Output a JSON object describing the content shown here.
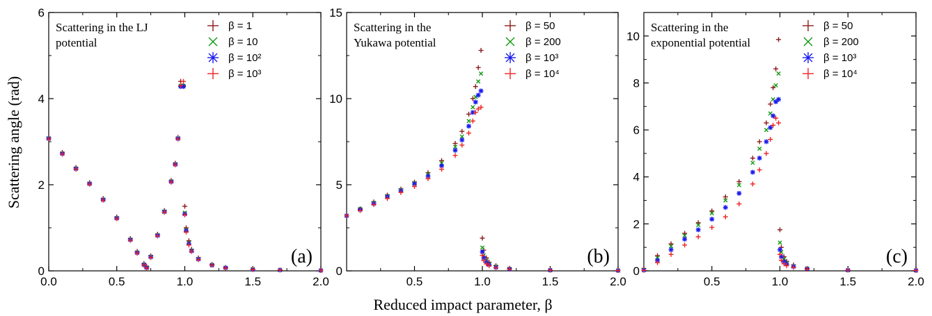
{
  "figure": {
    "ylabel": "Scattering angle (rad)",
    "xlabel": "Reduced impact parameter, β"
  },
  "chart_data": [
    {
      "type": "scatter",
      "title": "Scattering in the LJ potential",
      "title_lines": [
        "Scattering in the LJ",
        "potential"
      ],
      "panel_label": "(a)",
      "xlim": [
        0,
        2
      ],
      "ylim": [
        0,
        6
      ],
      "x_ticks": [
        "0.0",
        "0.5",
        "1.0",
        "1.5",
        "2.0"
      ],
      "y_ticks": [
        "0",
        "2",
        "4",
        "6"
      ],
      "legend": "top-right",
      "series": [
        {
          "name": "β = 1",
          "marker": "plus",
          "color": "#8b1a1a",
          "x": [
            0.0,
            0.1,
            0.2,
            0.3,
            0.4,
            0.5,
            0.6,
            0.65,
            0.7,
            0.72,
            0.75,
            0.8,
            0.85,
            0.9,
            0.93,
            0.95,
            0.97,
            0.99,
            1.0,
            1.01,
            1.03,
            1.05,
            1.1,
            1.2,
            1.3,
            1.5,
            1.7,
            2.0
          ],
          "y": [
            3.1,
            2.75,
            2.4,
            2.05,
            1.68,
            1.25,
            0.75,
            0.45,
            0.17,
            0.1,
            0.35,
            0.85,
            1.4,
            2.1,
            2.5,
            3.1,
            4.4,
            4.3,
            1.5,
            1.0,
            0.7,
            0.5,
            0.3,
            0.15,
            0.08,
            0.04,
            0.02,
            0.01
          ]
        },
        {
          "name": "β = 10",
          "marker": "x",
          "color": "#119911",
          "x": [
            0.0,
            0.1,
            0.2,
            0.3,
            0.4,
            0.5,
            0.6,
            0.65,
            0.7,
            0.72,
            0.75,
            0.8,
            0.85,
            0.9,
            0.93,
            0.95,
            0.97,
            0.99,
            1.0,
            1.01,
            1.03,
            1.05,
            1.1,
            1.2,
            1.3,
            1.5,
            1.7,
            2.0
          ],
          "y": [
            3.08,
            2.73,
            2.38,
            2.03,
            1.66,
            1.23,
            0.73,
            0.43,
            0.15,
            0.08,
            0.33,
            0.83,
            1.38,
            2.08,
            2.48,
            3.08,
            4.3,
            4.3,
            1.35,
            0.95,
            0.65,
            0.47,
            0.28,
            0.14,
            0.07,
            0.04,
            0.02,
            0.01
          ]
        },
        {
          "name": "β = 10²",
          "marker": "asterisk",
          "color": "#1a1aee",
          "x": [
            0.0,
            0.1,
            0.2,
            0.3,
            0.4,
            0.5,
            0.6,
            0.65,
            0.7,
            0.72,
            0.75,
            0.8,
            0.85,
            0.9,
            0.93,
            0.95,
            0.97,
            0.99,
            1.0,
            1.01,
            1.03,
            1.05,
            1.1,
            1.2,
            1.3,
            1.5,
            1.7,
            2.0
          ],
          "y": [
            3.07,
            2.72,
            2.37,
            2.02,
            1.65,
            1.22,
            0.72,
            0.42,
            0.14,
            0.07,
            0.32,
            0.82,
            1.37,
            2.07,
            2.47,
            3.07,
            4.28,
            4.28,
            1.32,
            0.93,
            0.63,
            0.46,
            0.27,
            0.13,
            0.07,
            0.03,
            0.02,
            0.01
          ]
        },
        {
          "name": "β = 10³",
          "marker": "plus",
          "color": "#ee2222",
          "x": [
            0.0,
            0.1,
            0.2,
            0.3,
            0.4,
            0.5,
            0.6,
            0.65,
            0.7,
            0.72,
            0.75,
            0.8,
            0.85,
            0.9,
            0.93,
            0.95,
            0.97,
            0.99,
            1.0,
            1.01,
            1.03,
            1.05,
            1.1,
            1.2,
            1.3,
            1.5,
            1.7,
            2.0
          ],
          "y": [
            3.06,
            2.71,
            2.36,
            2.01,
            1.64,
            1.21,
            0.71,
            0.41,
            0.13,
            0.06,
            0.31,
            0.81,
            1.36,
            2.06,
            2.46,
            3.06,
            4.3,
            4.4,
            1.3,
            0.9,
            0.6,
            0.45,
            0.26,
            0.13,
            0.06,
            0.03,
            0.02,
            0.01
          ]
        }
      ]
    },
    {
      "type": "scatter",
      "title": "Scattering in the Yukawa potential",
      "title_lines": [
        "Scattering in the",
        "Yukawa potential"
      ],
      "panel_label": "(b)",
      "xlim": [
        0,
        2
      ],
      "ylim": [
        0,
        15
      ],
      "x_ticks": [
        "0.5",
        "1.0",
        "1.5",
        "2.0"
      ],
      "y_ticks": [
        "0",
        "5",
        "10",
        "15"
      ],
      "legend": "top-right",
      "series": [
        {
          "name": "β = 50",
          "marker": "plus",
          "color": "#8b1a1a",
          "x": [
            0.0,
            0.1,
            0.2,
            0.3,
            0.4,
            0.5,
            0.6,
            0.7,
            0.8,
            0.85,
            0.9,
            0.93,
            0.95,
            0.97,
            0.99,
            1.0,
            1.01,
            1.03,
            1.05,
            1.1,
            1.2,
            1.5,
            2.0
          ],
          "y": [
            3.2,
            3.6,
            4.0,
            4.4,
            4.75,
            5.15,
            5.7,
            6.4,
            7.4,
            8.1,
            9.1,
            10.0,
            10.7,
            11.8,
            12.8,
            1.9,
            1.2,
            0.75,
            0.5,
            0.3,
            0.15,
            0.05,
            0.02
          ]
        },
        {
          "name": "β = 200",
          "marker": "x",
          "color": "#119911",
          "x": [
            0.0,
            0.1,
            0.2,
            0.3,
            0.4,
            0.5,
            0.6,
            0.7,
            0.8,
            0.85,
            0.9,
            0.93,
            0.95,
            0.97,
            0.99,
            1.0,
            1.01,
            1.03,
            1.05,
            1.1,
            1.2,
            1.5,
            2.0
          ],
          "y": [
            3.2,
            3.6,
            3.95,
            4.35,
            4.7,
            5.1,
            5.6,
            6.25,
            7.2,
            7.8,
            8.7,
            9.5,
            10.1,
            11.0,
            11.45,
            1.35,
            0.9,
            0.6,
            0.4,
            0.25,
            0.12,
            0.04,
            0.02
          ]
        },
        {
          "name": "β = 10³",
          "marker": "asterisk",
          "color": "#1a1aee",
          "x": [
            0.0,
            0.1,
            0.2,
            0.3,
            0.4,
            0.5,
            0.6,
            0.7,
            0.8,
            0.85,
            0.9,
            0.93,
            0.95,
            0.97,
            0.99,
            1.0,
            1.01,
            1.03,
            1.05,
            1.1,
            1.2,
            1.5,
            2.0
          ],
          "y": [
            3.2,
            3.55,
            3.9,
            4.3,
            4.65,
            5.05,
            5.5,
            6.1,
            7.0,
            7.6,
            8.4,
            9.2,
            9.8,
            10.2,
            10.45,
            1.1,
            0.75,
            0.5,
            0.35,
            0.2,
            0.1,
            0.04,
            0.02
          ]
        },
        {
          "name": "β = 10⁴",
          "marker": "plus",
          "color": "#ee2222",
          "x": [
            0.0,
            0.1,
            0.2,
            0.3,
            0.4,
            0.5,
            0.6,
            0.7,
            0.8,
            0.85,
            0.9,
            0.93,
            0.95,
            0.97,
            0.99,
            1.0,
            1.01,
            1.03,
            1.05,
            1.1,
            1.2,
            1.5,
            2.0
          ],
          "y": [
            3.2,
            3.5,
            3.85,
            4.2,
            4.55,
            4.9,
            5.35,
            5.9,
            6.7,
            7.3,
            8.0,
            8.7,
            9.2,
            9.4,
            9.5,
            0.9,
            0.6,
            0.4,
            0.3,
            0.18,
            0.1,
            0.04,
            0.02
          ]
        }
      ]
    },
    {
      "type": "scatter",
      "title": "Scattering in the exponential potential",
      "title_lines": [
        "Scattering in the",
        "exponential potential"
      ],
      "panel_label": "(c)",
      "xlim": [
        0,
        2
      ],
      "ylim": [
        0,
        11
      ],
      "x_ticks": [
        "0.5",
        "1.0",
        "1.5",
        "2.0"
      ],
      "y_ticks": [
        "0",
        "2",
        "4",
        "6",
        "8",
        "10"
      ],
      "legend": "top-right",
      "series": [
        {
          "name": "β = 50",
          "marker": "plus",
          "color": "#8b1a1a",
          "x": [
            0.0,
            0.1,
            0.2,
            0.3,
            0.4,
            0.5,
            0.6,
            0.7,
            0.8,
            0.85,
            0.9,
            0.93,
            0.95,
            0.97,
            0.99,
            1.0,
            1.01,
            1.03,
            1.05,
            1.1,
            1.2,
            1.5,
            2.0
          ],
          "y": [
            0.1,
            0.65,
            1.15,
            1.6,
            2.05,
            2.55,
            3.15,
            3.8,
            4.8,
            5.5,
            6.3,
            7.1,
            7.8,
            8.6,
            9.85,
            1.75,
            1.0,
            0.6,
            0.4,
            0.25,
            0.1,
            0.03,
            0.02
          ]
        },
        {
          "name": "β = 200",
          "marker": "x",
          "color": "#119911",
          "x": [
            0.0,
            0.1,
            0.2,
            0.3,
            0.4,
            0.5,
            0.6,
            0.7,
            0.8,
            0.85,
            0.9,
            0.93,
            0.95,
            0.97,
            0.99,
            1.0,
            1.01,
            1.03,
            1.05,
            1.1,
            1.2,
            1.5,
            2.0
          ],
          "y": [
            0.05,
            0.55,
            1.05,
            1.5,
            1.95,
            2.45,
            3.0,
            3.65,
            4.6,
            5.2,
            6.0,
            6.7,
            7.3,
            7.9,
            8.4,
            1.2,
            0.8,
            0.5,
            0.35,
            0.2,
            0.1,
            0.03,
            0.02
          ]
        },
        {
          "name": "β = 10³",
          "marker": "asterisk",
          "color": "#1a1aee",
          "x": [
            0.0,
            0.1,
            0.2,
            0.3,
            0.4,
            0.5,
            0.6,
            0.7,
            0.8,
            0.85,
            0.9,
            0.93,
            0.95,
            0.97,
            0.99,
            1.0,
            1.01,
            1.03,
            1.05,
            1.1,
            1.2,
            1.5,
            2.0
          ],
          "y": [
            0.03,
            0.45,
            0.9,
            1.35,
            1.75,
            2.2,
            2.7,
            3.3,
            4.2,
            4.8,
            5.5,
            6.1,
            6.6,
            7.2,
            7.3,
            0.9,
            0.6,
            0.4,
            0.28,
            0.18,
            0.08,
            0.03,
            0.02
          ]
        },
        {
          "name": "β = 10⁴",
          "marker": "plus",
          "color": "#ee2222",
          "x": [
            0.0,
            0.1,
            0.2,
            0.3,
            0.4,
            0.5,
            0.6,
            0.7,
            0.8,
            0.85,
            0.9,
            0.93,
            0.95,
            0.97,
            0.99,
            1.0,
            1.01,
            1.03,
            1.05,
            1.1,
            1.2,
            1.5,
            2.0
          ],
          "y": [
            0.02,
            0.35,
            0.7,
            1.1,
            1.45,
            1.85,
            2.3,
            2.85,
            3.7,
            4.3,
            5.0,
            5.6,
            6.2,
            6.5,
            6.3,
            0.7,
            0.45,
            0.3,
            0.22,
            0.15,
            0.07,
            0.03,
            0.02
          ]
        }
      ]
    }
  ]
}
